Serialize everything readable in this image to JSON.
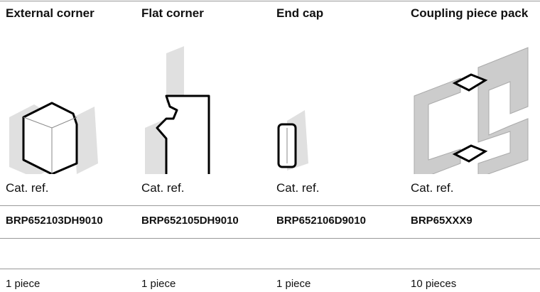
{
  "table": {
    "columns": [
      {
        "title": "External corner",
        "label": "Cat. ref.",
        "ref": "BRP652103DH9010",
        "quantity": "1 piece"
      },
      {
        "title": "Flat corner",
        "label": "Cat. ref.",
        "ref": "BRP652105DH9010",
        "quantity": "1 piece"
      },
      {
        "title": "End cap",
        "label": "Cat. ref.",
        "ref": "BRP652106D9010",
        "quantity": "1 piece"
      },
      {
        "title": "Coupling piece pack",
        "label": "Cat. ref.",
        "ref": "BRP65XXX9",
        "quantity": "10 pieces"
      }
    ]
  }
}
